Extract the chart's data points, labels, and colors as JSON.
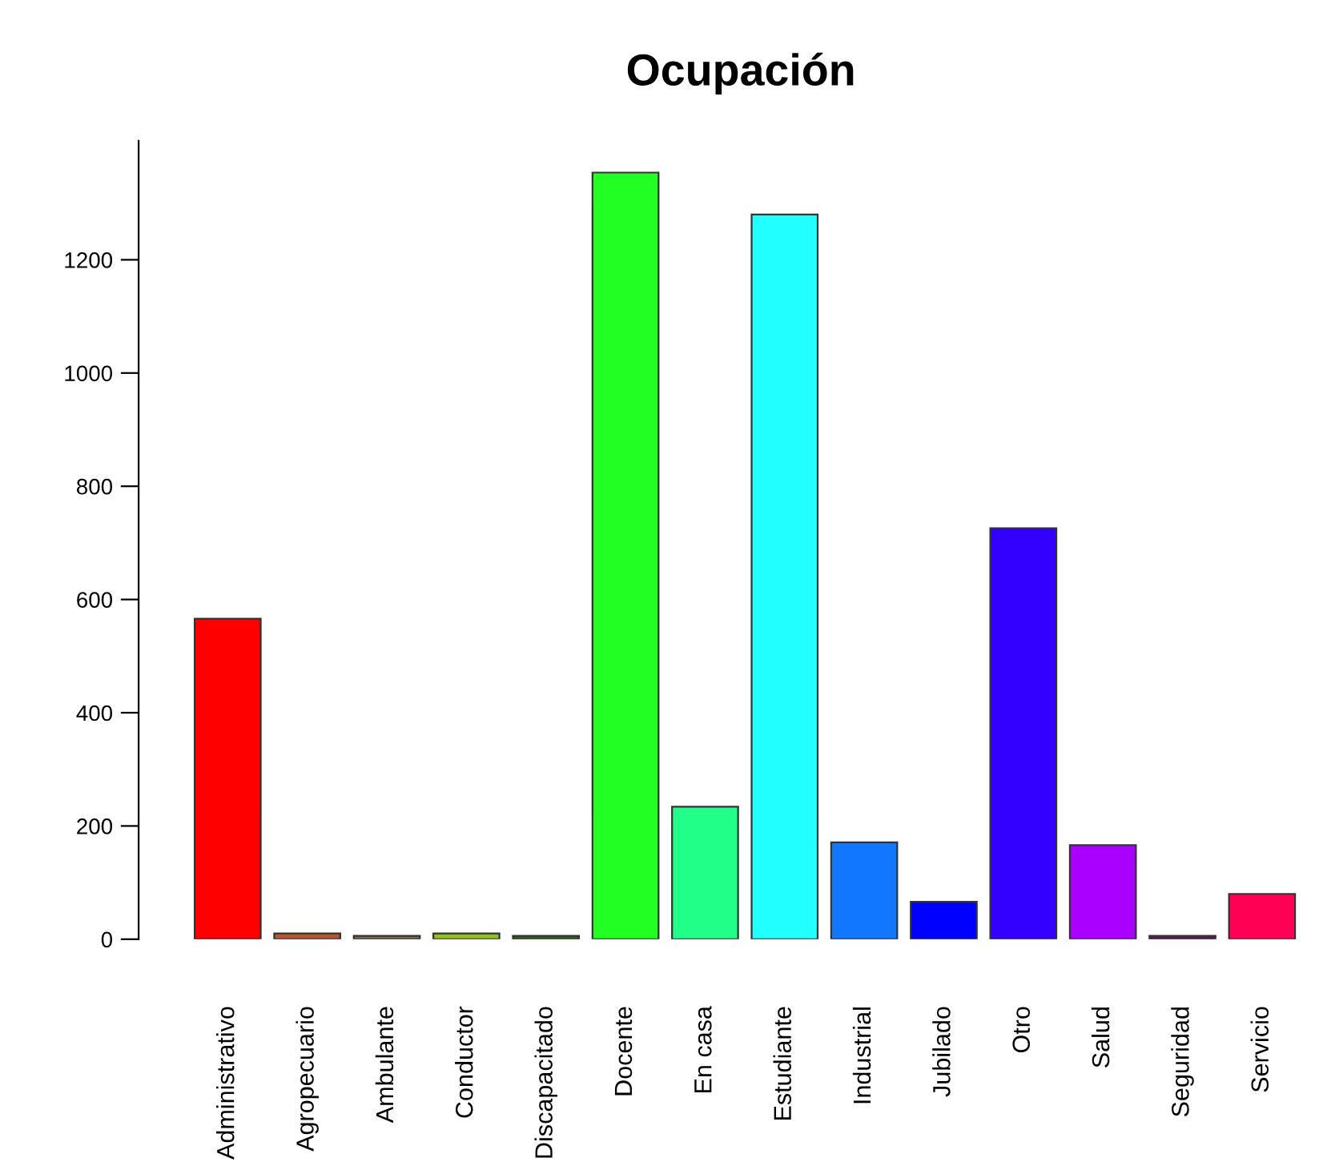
{
  "chart_data": {
    "type": "bar",
    "title": "Ocupación",
    "categories": [
      "Administrativo",
      "Agropecuario",
      "Ambulante",
      "Conductor",
      "Discapacitado",
      "Docente",
      "En casa",
      "Estudiante",
      "Industrial",
      "Jubilado",
      "Otro",
      "Salud",
      "Seguridad",
      "Servicio"
    ],
    "values": [
      566,
      10,
      6,
      10,
      6,
      1354,
      234,
      1280,
      171,
      66,
      726,
      166,
      6,
      80
    ],
    "colors": [
      "#ff0000",
      "#b5562c",
      "#7f6a4f",
      "#8fc31f",
      "#2f5f1f",
      "#22ff22",
      "#22ff88",
      "#22ffff",
      "#1177ff",
      "#0000ff",
      "#3300ff",
      "#aa00ff",
      "#5a1a5a",
      "#ff0055"
    ],
    "ylim": [
      0,
      1410
    ],
    "yticks": [
      0,
      200,
      400,
      600,
      800,
      1000,
      1200
    ],
    "grid": false
  }
}
